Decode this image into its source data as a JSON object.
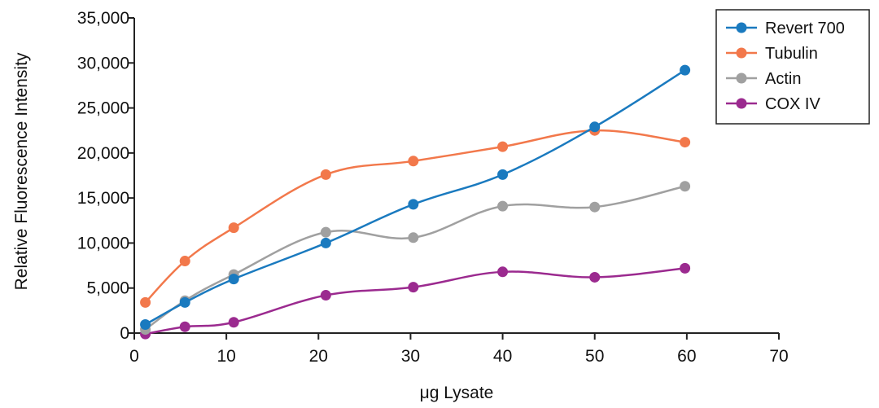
{
  "chart_data": {
    "type": "line",
    "xlabel": "μg Lysate",
    "ylabel": "Relative Fluorescence Intensity",
    "xlim": [
      0,
      70
    ],
    "ylim": [
      0,
      35000
    ],
    "x_ticks": [
      "0",
      "10",
      "20",
      "30",
      "40",
      "50",
      "60",
      "70"
    ],
    "y_ticks": [
      "0",
      "5,000",
      "10,000",
      "15,000",
      "20,000",
      "25,000",
      "30,000",
      "35,000"
    ],
    "grid": false,
    "legend_position": "top-right",
    "series": [
      {
        "name": "Revert 700",
        "color": "#1a7abf",
        "x": [
          1.2,
          5.5,
          10.8,
          20.8,
          30.3,
          40.0,
          50.0,
          59.8
        ],
        "y": [
          950,
          3400,
          6000,
          10000,
          14300,
          17600,
          22900,
          29200
        ]
      },
      {
        "name": "Tubulin",
        "color": "#f2784b",
        "x": [
          1.2,
          5.5,
          10.8,
          20.8,
          30.3,
          40.0,
          50.0,
          59.8
        ],
        "y": [
          3400,
          8000,
          11700,
          17600,
          19100,
          20700,
          22500,
          21200
        ]
      },
      {
        "name": "Actin",
        "color": "#a0a0a0",
        "x": [
          1.2,
          5.5,
          10.8,
          20.8,
          30.3,
          40.0,
          50.0,
          59.8
        ],
        "y": [
          400,
          3600,
          6500,
          11200,
          10600,
          14100,
          14000,
          16300
        ]
      },
      {
        "name": "COX IV",
        "color": "#9b2a8f",
        "x": [
          1.2,
          5.5,
          10.8,
          20.8,
          30.3,
          40.0,
          50.0,
          59.8
        ],
        "y": [
          -100,
          700,
          1200,
          4200,
          5100,
          6800,
          6200,
          7200
        ]
      }
    ]
  }
}
